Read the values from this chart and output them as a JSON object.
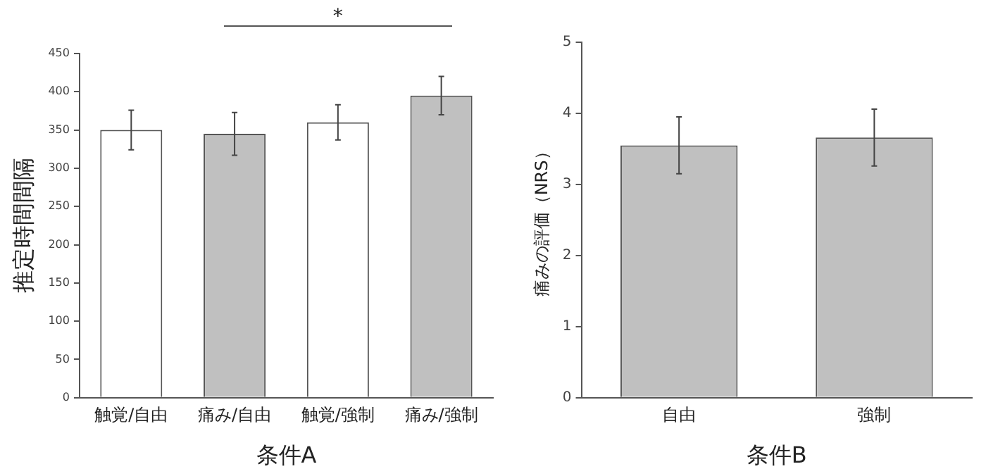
{
  "chart_data": [
    {
      "type": "bar",
      "categories": [
        "触覚/自由",
        "痛み/自由",
        "触覚/強制",
        "痛み/強制"
      ],
      "values": [
        350,
        345,
        360,
        395
      ],
      "colors": [
        "#ffffff",
        "#c0c0c0",
        "#ffffff",
        "#c0c0c0"
      ],
      "errors": [
        26,
        28,
        23,
        25
      ],
      "xlabel": "条件A",
      "ylabel": "推定時間間隔",
      "ylim": [
        0,
        450
      ],
      "yticks": [
        0,
        50,
        100,
        150,
        200,
        250,
        300,
        350,
        400,
        450
      ],
      "grid": false,
      "legend": false,
      "annotations": [
        "*"
      ]
    },
    {
      "type": "bar",
      "categories": [
        "自由",
        "強制"
      ],
      "values": [
        3.55,
        3.66
      ],
      "colors": [
        "#c0c0c0",
        "#c0c0c0"
      ],
      "errors": [
        0.4,
        0.4
      ],
      "xlabel": "条件B",
      "ylabel": "痛みの評価（NRS）",
      "ylim": [
        0,
        5
      ],
      "yticks": [
        0,
        1,
        2,
        3,
        4,
        5
      ],
      "grid": false,
      "legend": false
    }
  ]
}
